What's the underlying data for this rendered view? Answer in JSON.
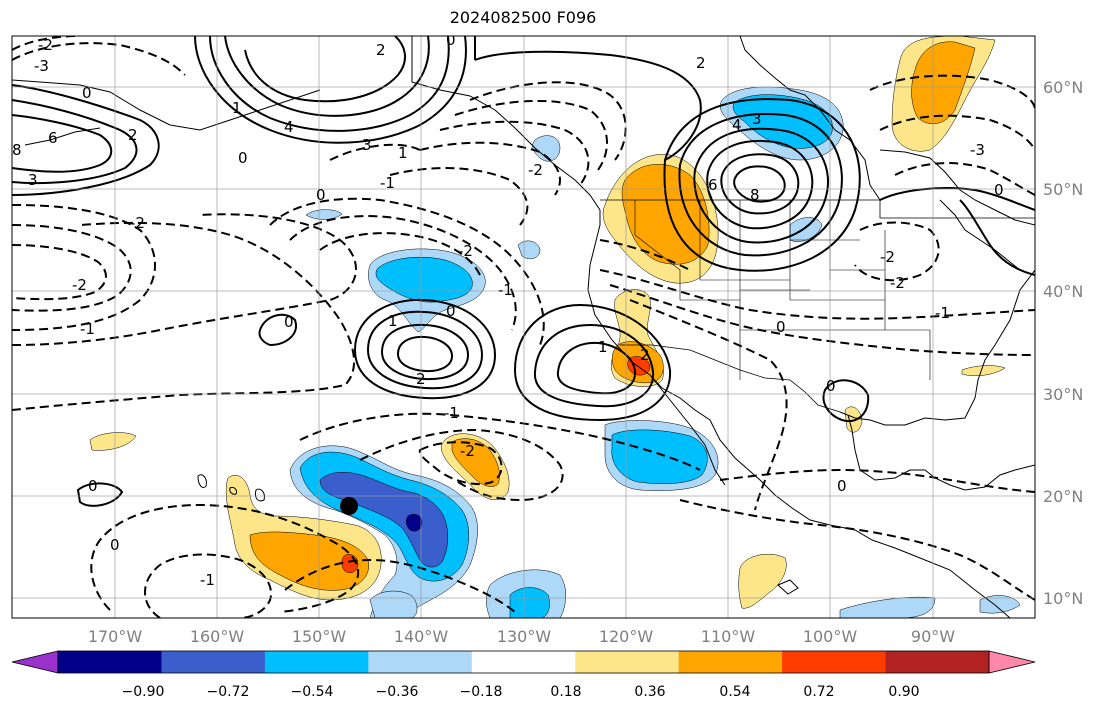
{
  "title": "2024082500 F096",
  "map": {
    "projection": "lat-lon",
    "lon_range_deg": [
      -179.5,
      -79.5
    ],
    "lat_range_deg": [
      7.5,
      65.3
    ],
    "lon_ticks": [
      "170°W",
      "160°W",
      "150°W",
      "140°W",
      "130°W",
      "120°W",
      "110°W",
      "100°W",
      "90°W"
    ],
    "lat_ticks": [
      "10°N",
      "20°N",
      "30°N",
      "40°N",
      "50°N",
      "60°N"
    ],
    "grid": true,
    "marker": {
      "name": "storm-center-marker",
      "lon": -146.5,
      "lat": 19.0
    }
  },
  "contour_labels": {
    "negative": [
      "-3",
      "-2",
      "-2",
      "-1",
      "-1",
      "-2",
      "-1",
      "-2",
      "-2",
      "-1",
      "-1",
      "-2",
      "-3",
      "-2",
      "-2",
      "-1"
    ],
    "zero": [
      "0",
      "0",
      "0",
      "0",
      "0",
      "0",
      "0",
      "0",
      "0",
      "0",
      "0",
      "0"
    ],
    "positive": [
      "1",
      "3",
      "2",
      "4",
      "3",
      "6",
      "8",
      "2",
      "1",
      "1",
      "2",
      "1",
      "4",
      "3",
      "8",
      "2",
      "6",
      "2"
    ]
  },
  "colorbar": {
    "ticks": [
      "−0.90",
      "−0.72",
      "−0.54",
      "−0.36",
      "−0.18",
      "0.18",
      "0.36",
      "0.54",
      "0.72",
      "0.90"
    ],
    "colors": [
      "#9932cc",
      "#00008b",
      "#3a5fcd",
      "#00bfff",
      "#add8f8",
      "#ffffff",
      "#fde68a",
      "#ffa500",
      "#ff3c00",
      "#b22222",
      "#ff88aa"
    ]
  }
}
